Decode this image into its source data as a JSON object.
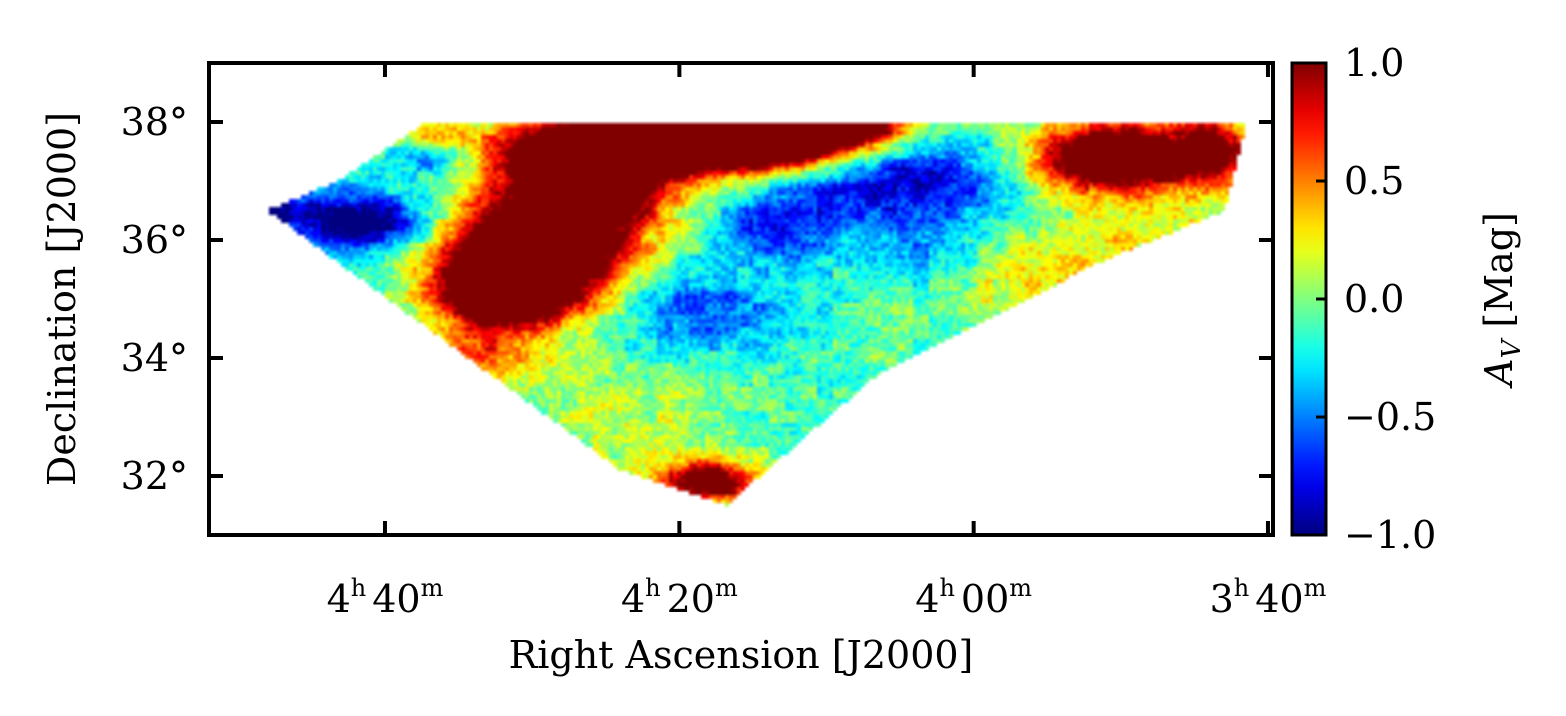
{
  "chart_data": {
    "type": "heatmap",
    "title": "",
    "xlabel": "Right Ascension [J2000]",
    "ylabel": "Declination [J2000]",
    "x_ticks": [
      {
        "ra_hours": 4.6667,
        "h": "4",
        "m": "40"
      },
      {
        "ra_hours": 4.3333,
        "h": "4",
        "m": "20"
      },
      {
        "ra_hours": 4.0,
        "h": "4",
        "m": "00"
      },
      {
        "ra_hours": 3.6667,
        "h": "3",
        "m": "40"
      }
    ],
    "y_ticks": [
      {
        "dec": 38,
        "label": "38°"
      },
      {
        "dec": 36,
        "label": "36°"
      },
      {
        "dec": 34,
        "label": "34°"
      },
      {
        "dec": 32,
        "label": "32°"
      }
    ],
    "xlim_ra_hours": [
      4.866,
      3.661
    ],
    "ylim_dec_deg": [
      31.0,
      39.0
    ],
    "colorbar": {
      "label": "A_V [Mag]",
      "label_main": "A",
      "label_sub": "V",
      "label_rest": " [Mag]",
      "range": [
        -1.0,
        1.0
      ],
      "ticks": [
        {
          "value": 1.0,
          "label": "1.0"
        },
        {
          "value": 0.5,
          "label": "0.5"
        },
        {
          "value": 0.0,
          "label": "0.0"
        },
        {
          "value": -0.5,
          "label": "−0.5"
        },
        {
          "value": -1.0,
          "label": "−1.0"
        }
      ],
      "colormap": "jet"
    },
    "footprint_polygon": [
      {
        "ra": 4.62,
        "dec": 38.0
      },
      {
        "ra": 3.69,
        "dec": 38.0
      },
      {
        "ra": 3.715,
        "dec": 36.5
      },
      {
        "ra": 3.86,
        "dec": 35.6
      },
      {
        "ra": 4.11,
        "dec": 33.7
      },
      {
        "ra": 4.28,
        "dec": 31.5
      },
      {
        "ra": 4.4,
        "dec": 32.1
      },
      {
        "ra": 4.6,
        "dec": 34.3
      },
      {
        "ra": 4.8,
        "dec": 36.5
      },
      {
        "ra": 4.72,
        "dec": 37.0
      }
    ],
    "extinction_features": [
      {
        "ra": 4.44,
        "dec": 37.0,
        "sigma_ra": 0.06,
        "sigma_dec": 0.6,
        "value": 2.0
      },
      {
        "ra": 4.34,
        "dec": 37.6,
        "sigma_ra": 0.12,
        "sigma_dec": 0.35,
        "value": 2.0
      },
      {
        "ra": 4.5,
        "dec": 35.8,
        "sigma_ra": 0.07,
        "sigma_dec": 0.6,
        "value": 2.0
      },
      {
        "ra": 4.53,
        "dec": 35.1,
        "sigma_ra": 0.05,
        "sigma_dec": 0.4,
        "value": 1.8
      },
      {
        "ra": 4.22,
        "dec": 37.8,
        "sigma_ra": 0.06,
        "sigma_dec": 0.35,
        "value": 1.6
      },
      {
        "ra": 4.14,
        "dec": 37.9,
        "sigma_ra": 0.04,
        "sigma_dec": 0.2,
        "value": 1.4
      },
      {
        "ra": 3.84,
        "dec": 37.4,
        "sigma_ra": 0.06,
        "sigma_dec": 0.4,
        "value": 2.0
      },
      {
        "ra": 3.73,
        "dec": 37.5,
        "sigma_ra": 0.03,
        "sigma_dec": 0.4,
        "value": 1.2
      },
      {
        "ra": 4.3,
        "dec": 31.9,
        "sigma_ra": 0.04,
        "sigma_dec": 0.25,
        "value": 1.5
      },
      {
        "ra": 4.56,
        "dec": 34.0,
        "sigma_ra": 0.05,
        "sigma_dec": 0.35,
        "value": 0.7
      },
      {
        "ra": 4.62,
        "dec": 37.7,
        "sigma_ra": 0.03,
        "sigma_dec": 0.25,
        "value": 0.8
      },
      {
        "ra": 4.7,
        "dec": 36.3,
        "sigma_ra": 0.06,
        "sigma_dec": 0.35,
        "value": -1.1
      },
      {
        "ra": 4.82,
        "dec": 36.5,
        "sigma_ra": 0.03,
        "sigma_dec": 0.25,
        "value": -1.3
      },
      {
        "ra": 4.62,
        "dec": 37.5,
        "sigma_ra": 0.03,
        "sigma_dec": 0.25,
        "value": -0.9
      },
      {
        "ra": 4.09,
        "dec": 37.0,
        "sigma_ra": 0.09,
        "sigma_dec": 0.5,
        "value": -0.8
      },
      {
        "ra": 4.22,
        "dec": 36.2,
        "sigma_ra": 0.05,
        "sigma_dec": 0.4,
        "value": -0.6
      },
      {
        "ra": 4.3,
        "dec": 34.8,
        "sigma_ra": 0.07,
        "sigma_dec": 0.5,
        "value": -0.5
      },
      {
        "ra": 4.05,
        "dec": 35.8,
        "sigma_ra": 0.05,
        "sigma_dec": 0.5,
        "value": -0.4
      },
      {
        "ra": 3.95,
        "dec": 35.3,
        "sigma_ra": 0.08,
        "sigma_dec": 0.6,
        "value": 0.35
      },
      {
        "ra": 3.8,
        "dec": 35.8,
        "sigma_ra": 0.08,
        "sigma_dec": 0.7,
        "value": 0.35
      },
      {
        "ra": 4.4,
        "dec": 33.0,
        "sigma_ra": 0.08,
        "sigma_dec": 0.6,
        "value": 0.25
      }
    ]
  }
}
